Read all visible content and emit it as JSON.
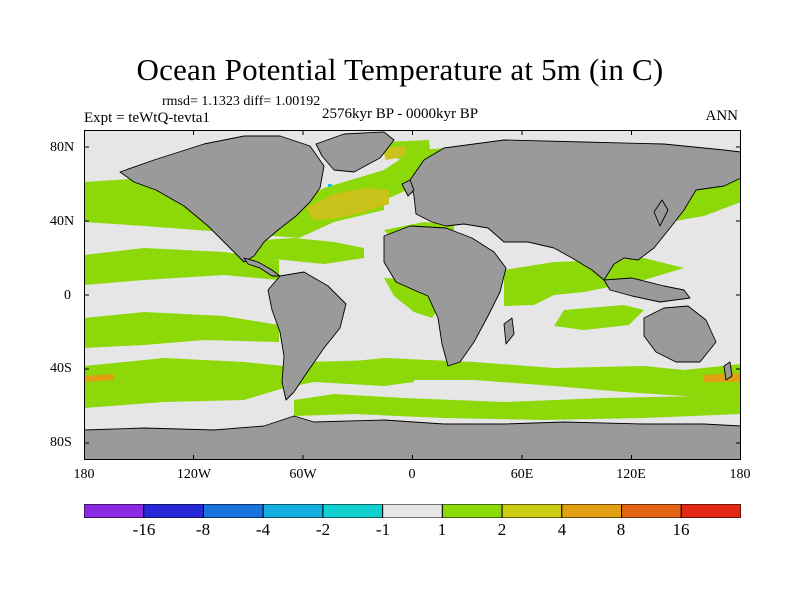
{
  "title": "Ocean Potential Temperature at 5m (in C)",
  "stats": "rmsd= 1.1323 diff= 1.00192",
  "experiment": "Expt = teWtQ-tevta1",
  "period": "2576kyr BP - 0000kyr BP",
  "season": "ANN",
  "axes": {
    "y_ticks": [
      "80N",
      "40N",
      "0",
      "40S",
      "80S"
    ],
    "x_ticks": [
      "180",
      "120W",
      "60W",
      "0",
      "60E",
      "120E",
      "180"
    ]
  },
  "colorbar": {
    "labels": [
      "-16",
      "-8",
      "-4",
      "-2",
      "-1",
      "1",
      "2",
      "4",
      "8",
      "16"
    ],
    "colors": [
      "#8a2be2",
      "#2828d8",
      "#1874dc",
      "#12aee0",
      "#10d0d0",
      "#e6e6e6",
      "#8cd808",
      "#cccc12",
      "#e0a012",
      "#e06414",
      "#e02812"
    ]
  },
  "palette": {
    "land": "#9a9a9a",
    "neutral": "#e6e6e6",
    "green": "#8cd808",
    "olive": "#c8c21a",
    "orange": "#e0a012",
    "cyan": "#12c8d8"
  }
}
